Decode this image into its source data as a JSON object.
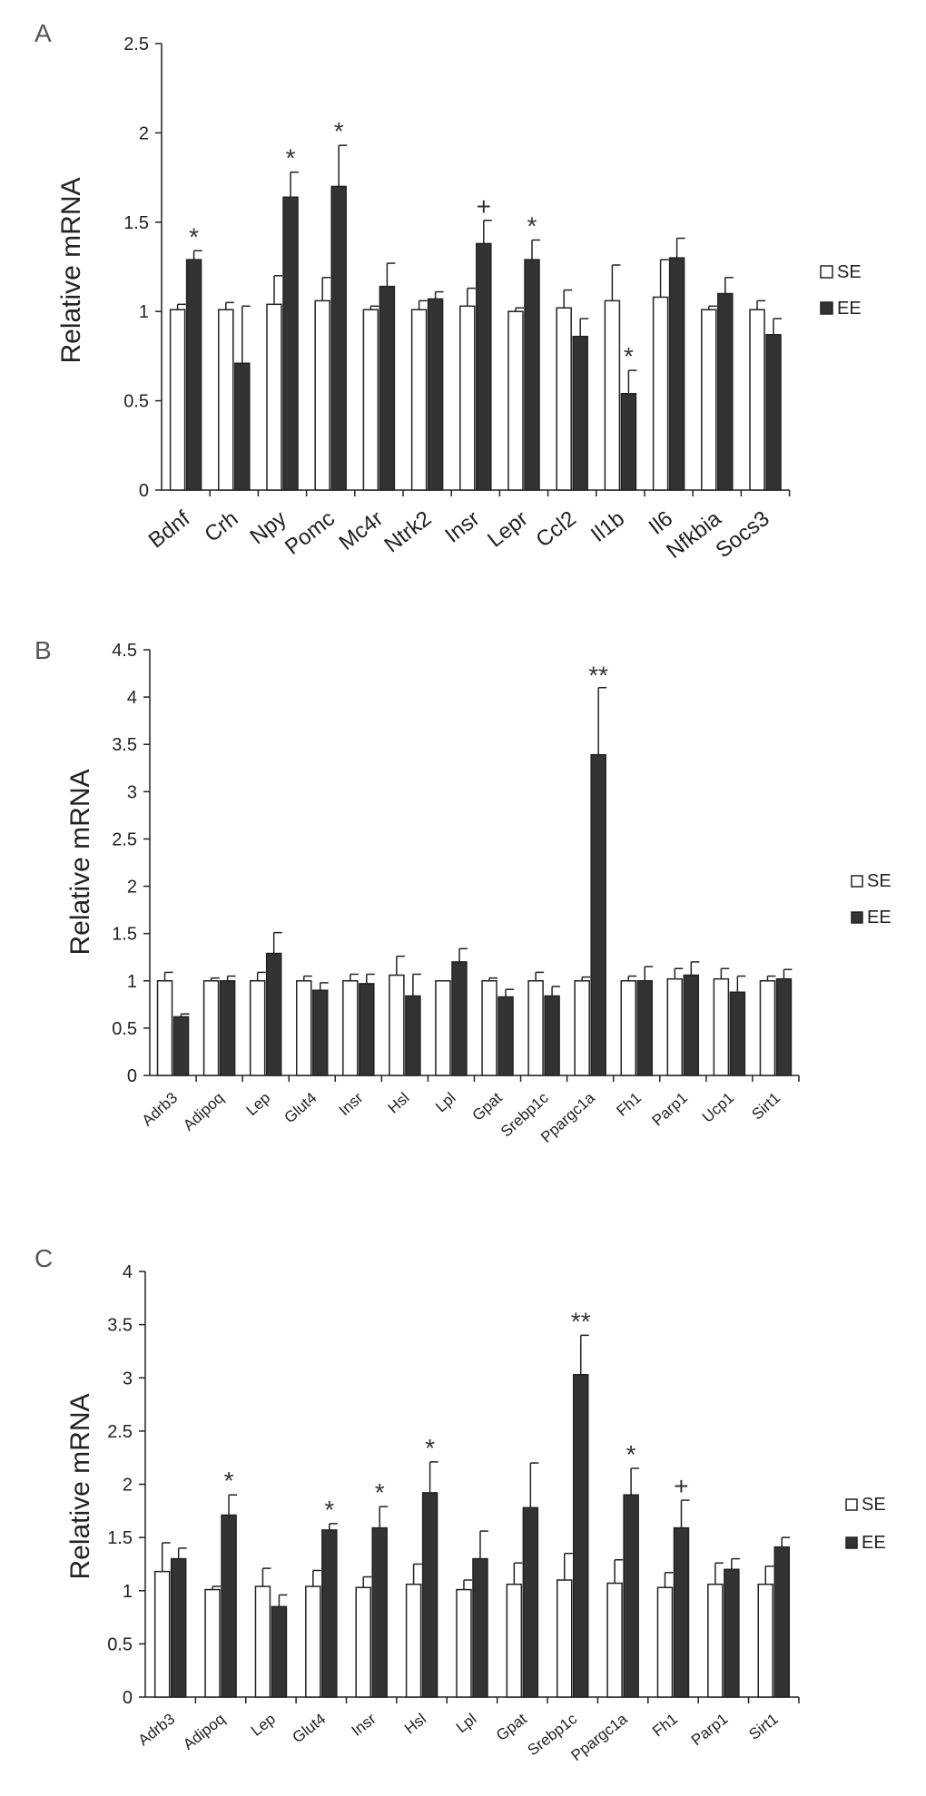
{
  "colors": {
    "se_fill": "#ffffff",
    "ee_fill": "#333333",
    "stroke": "#222222"
  },
  "chart_data": [
    {
      "type": "bar",
      "panel": "A",
      "ylabel": "Relative mRNA",
      "ylim": [
        0,
        2.5
      ],
      "yticks": [
        "0",
        "0.5",
        "1",
        "1.5",
        "2",
        "2.5"
      ],
      "categories": [
        "Bdnf",
        "Crh",
        "Npy",
        "Pomc",
        "Mc4r",
        "Ntrk2",
        "Insr",
        "Lepr",
        "Ccl2",
        "Il1b",
        "Il6",
        "Nfkbia",
        "Socs3"
      ],
      "series": [
        {
          "name": "SE",
          "values": [
            1.01,
            1.01,
            1.04,
            1.06,
            1.01,
            1.01,
            1.03,
            1.0,
            1.02,
            1.06,
            1.08,
            1.01,
            1.01
          ],
          "errors": [
            0.03,
            0.04,
            0.16,
            0.13,
            0.02,
            0.05,
            0.1,
            0.02,
            0.1,
            0.2,
            0.21,
            0.02,
            0.05
          ]
        },
        {
          "name": "EE",
          "values": [
            1.29,
            0.71,
            1.64,
            1.7,
            1.14,
            1.07,
            1.38,
            1.29,
            0.86,
            0.54,
            1.3,
            1.1,
            0.87
          ],
          "errors": [
            0.05,
            0.32,
            0.14,
            0.23,
            0.13,
            0.04,
            0.13,
            0.11,
            0.1,
            0.13,
            0.11,
            0.09,
            0.09
          ]
        }
      ],
      "significance": [
        "*",
        "",
        "*",
        "*",
        "",
        "",
        "+",
        "*",
        "",
        "*",
        "",
        "",
        ""
      ],
      "legend": [
        "SE",
        "EE"
      ]
    },
    {
      "type": "bar",
      "panel": "B",
      "ylabel": "Relative mRNA",
      "ylim": [
        0,
        4.5
      ],
      "yticks": [
        "0",
        "0.5",
        "1",
        "1.5",
        "2",
        "2.5",
        "3",
        "3.5",
        "4",
        "4.5"
      ],
      "categories": [
        "Adrb3",
        "Adipoq",
        "Lep",
        "Glut4",
        "Insr",
        "Hsl",
        "Lpl",
        "Gpat",
        "Srebp1c",
        "Ppargc1a",
        "Fh1",
        "Parp1",
        "Ucp1",
        "Sirt1"
      ],
      "series": [
        {
          "name": "SE",
          "values": [
            1.0,
            1.0,
            1.0,
            1.0,
            1.0,
            1.06,
            1.0,
            1.0,
            1.0,
            1.0,
            1.0,
            1.02,
            1.02,
            1.0
          ],
          "errors": [
            0.09,
            0.03,
            0.09,
            0.05,
            0.07,
            0.2,
            0.0,
            0.03,
            0.09,
            0.04,
            0.05,
            0.11,
            0.11,
            0.05
          ]
        },
        {
          "name": "EE",
          "values": [
            0.62,
            1.0,
            1.29,
            0.9,
            0.97,
            0.84,
            1.2,
            0.83,
            0.84,
            3.39,
            1.0,
            1.06,
            0.88,
            1.02
          ],
          "errors": [
            0.03,
            0.05,
            0.22,
            0.08,
            0.1,
            0.23,
            0.14,
            0.08,
            0.1,
            0.71,
            0.15,
            0.14,
            0.17,
            0.1
          ]
        }
      ],
      "significance": [
        "",
        "",
        "",
        "",
        "",
        "",
        "",
        "",
        "",
        "**",
        "",
        "",
        "",
        ""
      ],
      "legend": [
        "SE",
        "EE"
      ]
    },
    {
      "type": "bar",
      "panel": "C",
      "ylabel": "Relative mRNA",
      "ylim": [
        0,
        4
      ],
      "yticks": [
        "0",
        "0.5",
        "1",
        "1.5",
        "2",
        "2.5",
        "3",
        "3.5",
        "4"
      ],
      "categories": [
        "Adrb3",
        "Adipoq",
        "Lep",
        "Glut4",
        "Insr",
        "Hsl",
        "Lpl",
        "Gpat",
        "Srebp1c",
        "Ppargc1a",
        "Fh1",
        "Parp1",
        "Sirt1"
      ],
      "series": [
        {
          "name": "SE",
          "values": [
            1.18,
            1.01,
            1.04,
            1.04,
            1.03,
            1.06,
            1.01,
            1.06,
            1.1,
            1.07,
            1.03,
            1.06,
            1.06
          ],
          "errors": [
            0.27,
            0.03,
            0.17,
            0.15,
            0.1,
            0.19,
            0.09,
            0.2,
            0.25,
            0.22,
            0.14,
            0.2,
            0.17
          ]
        },
        {
          "name": "EE",
          "values": [
            1.3,
            1.71,
            0.85,
            1.57,
            1.59,
            1.92,
            1.3,
            1.78,
            3.03,
            1.9,
            1.59,
            1.2,
            1.41
          ],
          "errors": [
            0.1,
            0.19,
            0.11,
            0.06,
            0.2,
            0.29,
            0.26,
            0.42,
            0.37,
            0.25,
            0.26,
            0.1,
            0.09
          ]
        }
      ],
      "significance": [
        "",
        "*",
        "",
        "*",
        "*",
        "*",
        "",
        "",
        "**",
        "*",
        "+",
        "",
        ""
      ],
      "legend": [
        "SE",
        "EE"
      ]
    }
  ]
}
